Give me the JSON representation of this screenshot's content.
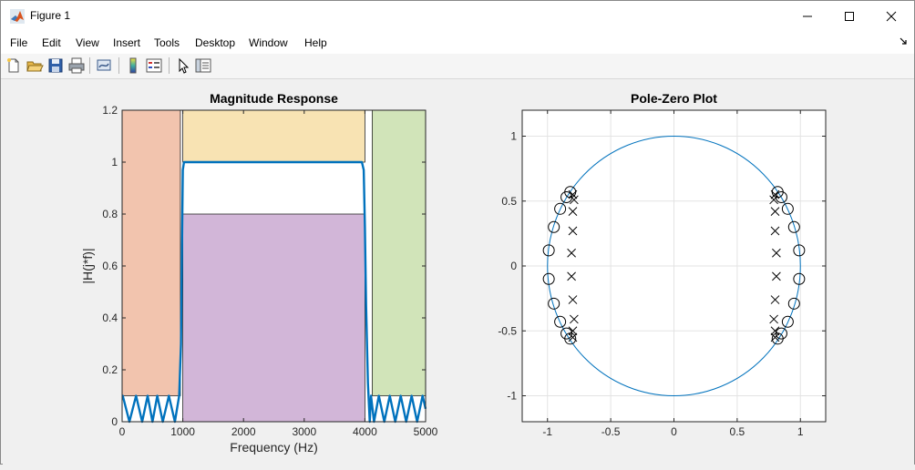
{
  "window": {
    "title": "Figure 1",
    "menus": [
      "File",
      "Edit",
      "View",
      "Insert",
      "Tools",
      "Desktop",
      "Window",
      "Help"
    ],
    "toolbar_icons": [
      "new-figure-icon",
      "open-file-icon",
      "save-icon",
      "print-icon",
      "link-figure-icon",
      "colorbar-icon",
      "legend-icon",
      "edit-plot-arrow-icon",
      "property-inspector-icon"
    ]
  },
  "colors": {
    "line": "#0072BD",
    "stopband1": "#F2C4AE",
    "passband_upper": "#F8E3B3",
    "passband_lower": "#D2B6D8",
    "stopband2": "#D1E4B9",
    "marker": "#000000"
  },
  "chart_data": [
    {
      "type": "line",
      "title": "Magnitude Response",
      "xlabel": "Frequency (Hz)",
      "ylabel": "|H(j*f)|",
      "xlim": [
        0,
        5000
      ],
      "ylim": [
        0,
        1.2
      ],
      "xticks": [
        0,
        1000,
        2000,
        3000,
        4000,
        5000
      ],
      "xtick_labels": [
        "0",
        "1000",
        "2000",
        "3000",
        "4000",
        "5000"
      ],
      "yticks": [
        0,
        0.2,
        0.4,
        0.6,
        0.8,
        1,
        1.2
      ],
      "ytick_labels": [
        "0",
        "0.2",
        "0.4",
        "0.6",
        "0.8",
        "1",
        "1.2"
      ],
      "grid": false,
      "regions": [
        {
          "x": [
            0,
            960
          ],
          "y": [
            0.1,
            1.2
          ],
          "color": "stopband1"
        },
        {
          "x": [
            1000,
            4000
          ],
          "y": [
            1.0,
            1.2
          ],
          "color": "passband_upper"
        },
        {
          "x": [
            1000,
            4000
          ],
          "y": [
            0,
            0.8
          ],
          "color": "passband_lower"
        },
        {
          "x": [
            4120,
            5000
          ],
          "y": [
            0.1,
            1.2
          ],
          "color": "stopband2"
        }
      ],
      "series": [
        {
          "x": [
            0,
            10,
            120,
            230,
            330,
            420,
            500,
            580,
            670,
            770,
            870,
            940,
            970,
            990,
            1000,
            1020,
            1050,
            1100,
            1200,
            1500,
            2000,
            2500,
            3000,
            3500,
            3800,
            3900,
            3950,
            3980,
            4000,
            4020,
            4050,
            4080,
            4100,
            4150,
            4230,
            4320,
            4410,
            4500,
            4590,
            4680,
            4770,
            4860,
            4950,
            5000
          ],
          "y": [
            0.1,
            0.1,
            0.0,
            0.1,
            0.0,
            0.1,
            0.0,
            0.1,
            0.0,
            0.1,
            0.0,
            0.1,
            0.3,
            0.75,
            0.97,
            1.0,
            1.0,
            1.0,
            1.0,
            1.0,
            1.0,
            1.0,
            1.0,
            1.0,
            1.0,
            1.0,
            1.0,
            0.97,
            0.75,
            0.45,
            0.15,
            0.0,
            0.1,
            0.0,
            0.1,
            0.0,
            0.1,
            0.0,
            0.1,
            0.0,
            0.1,
            0.0,
            0.1,
            0.05
          ]
        }
      ]
    },
    {
      "type": "scatter",
      "title": "Pole-Zero Plot",
      "xlim": [
        -1.2,
        1.2
      ],
      "ylim": [
        -1.2,
        1.2
      ],
      "xticks": [
        -1,
        -0.5,
        0,
        0.5,
        1
      ],
      "xtick_labels": [
        "-1",
        "-0.5",
        "0",
        "0.5",
        "1"
      ],
      "yticks": [
        -1,
        -0.5,
        0,
        0.5,
        1
      ],
      "ytick_labels": [
        "-1",
        "-0.5",
        "0",
        "0.5",
        "1"
      ],
      "grid": true,
      "unit_circle": true,
      "zeros": [
        [
          0.82,
          0.57
        ],
        [
          0.85,
          0.53
        ],
        [
          0.9,
          0.44
        ],
        [
          0.95,
          0.3
        ],
        [
          0.99,
          0.12
        ],
        [
          0.99,
          -0.1
        ],
        [
          0.95,
          -0.29
        ],
        [
          0.9,
          -0.43
        ],
        [
          0.85,
          -0.52
        ],
        [
          0.82,
          -0.56
        ],
        [
          -0.82,
          0.57
        ],
        [
          -0.85,
          0.53
        ],
        [
          -0.9,
          0.44
        ],
        [
          -0.95,
          0.3
        ],
        [
          -0.99,
          0.12
        ],
        [
          -0.99,
          -0.1
        ],
        [
          -0.95,
          -0.29
        ],
        [
          -0.9,
          -0.43
        ],
        [
          -0.85,
          -0.52
        ],
        [
          -0.82,
          -0.56
        ]
      ],
      "poles": [
        [
          0.8,
          0.55
        ],
        [
          0.79,
          0.51
        ],
        [
          0.8,
          0.42
        ],
        [
          0.8,
          0.27
        ],
        [
          0.81,
          0.1
        ],
        [
          0.81,
          -0.08
        ],
        [
          0.8,
          -0.26
        ],
        [
          0.79,
          -0.41
        ],
        [
          0.8,
          -0.5
        ],
        [
          0.8,
          -0.55
        ],
        [
          -0.8,
          0.55
        ],
        [
          -0.79,
          0.51
        ],
        [
          -0.8,
          0.42
        ],
        [
          -0.8,
          0.27
        ],
        [
          -0.81,
          0.1
        ],
        [
          -0.81,
          -0.08
        ],
        [
          -0.8,
          -0.26
        ],
        [
          -0.79,
          -0.41
        ],
        [
          -0.8,
          -0.5
        ],
        [
          -0.8,
          -0.55
        ]
      ]
    }
  ]
}
